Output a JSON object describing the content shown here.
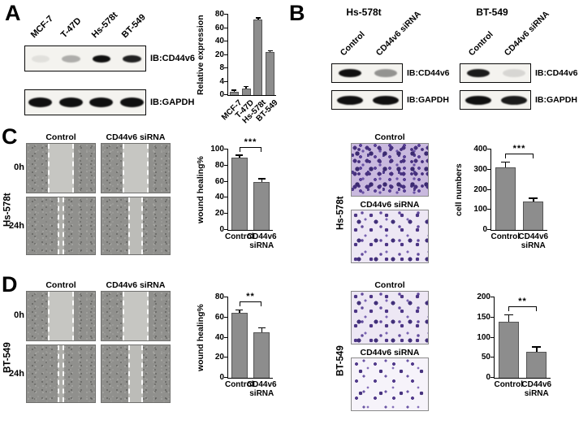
{
  "panel_a": {
    "letter": "A",
    "lanes": [
      "MCF-7",
      "T-47D",
      "Hs-578t",
      "BT-549"
    ],
    "blots": [
      {
        "label": "IB:CD44v6",
        "bands": [
          0.08,
          0.3,
          1,
          0.92
        ],
        "band_h": 9,
        "band_w": 0.6
      },
      {
        "label": "IB:GAPDH",
        "bands": [
          1,
          1,
          1,
          1
        ],
        "band_h": 12,
        "band_w": 0.78
      }
    ]
  },
  "panel_b": {
    "letter": "B",
    "groups": [
      {
        "title": "Hs-578t",
        "lanes": [
          "Control",
          "CD44v6 siRNA"
        ],
        "blots": [
          {
            "label": "IB:CD44v6",
            "bands": [
              1,
              0.42
            ],
            "band_h": 10,
            "band_w": 0.62
          },
          {
            "label": "IB:GAPDH",
            "bands": [
              1,
              1
            ],
            "band_h": 11,
            "band_w": 0.72
          }
        ]
      },
      {
        "title": "BT-549",
        "lanes": [
          "Control",
          "CD44v6 siRNA"
        ],
        "blots": [
          {
            "label": "IB:CD44v6",
            "bands": [
              0.95,
              0.12
            ],
            "band_h": 10,
            "band_w": 0.62
          },
          {
            "label": "IB:GAPDH",
            "bands": [
              1,
              0.95
            ],
            "band_h": 11,
            "band_w": 0.72
          }
        ]
      }
    ]
  },
  "panel_c": {
    "letter": "C",
    "cell_line": "Hs-578t",
    "wound_headers": [
      "Control",
      "CD44v6 siRNA"
    ],
    "time_labels": [
      "0h",
      "24h"
    ],
    "transwell": {
      "top": "Control",
      "mid": "CD44v6 siRNA",
      "side": "Hs-578t"
    }
  },
  "panel_d": {
    "letter": "D",
    "cell_line": "BT-549",
    "wound_headers": [
      "Control",
      "CD44v6 siRNA"
    ],
    "time_labels": [
      "0h",
      "24h"
    ],
    "transwell": {
      "top": "Control",
      "mid": "CD44v6 siRNA",
      "side": "BT-549"
    }
  },
  "chart_data": [
    {
      "type": "bar",
      "ylabel": "Relative expression",
      "categories": [
        "MCF-7",
        "T-47D",
        "Hs-578t",
        "BT-549"
      ],
      "values": [
        1,
        2,
        73,
        24
      ],
      "errors": [
        0.3,
        0.4,
        1.5,
        1
      ],
      "yticks": [
        0,
        4,
        8,
        20,
        40,
        60,
        80
      ],
      "axis_break": true,
      "significance": null,
      "bar_color": "#8d8d8d",
      "grid": false,
      "legend": false
    },
    {
      "type": "bar",
      "ylabel": "wound healing%",
      "categories": [
        "Control",
        "CD44v6\nsiRNA"
      ],
      "values": [
        90,
        60
      ],
      "errors": [
        2,
        3
      ],
      "yticks": [
        0,
        20,
        40,
        60,
        80,
        100
      ],
      "significance": "***",
      "bar_color": "#8d8d8d",
      "grid": false,
      "legend": false
    },
    {
      "type": "bar",
      "ylabel": "cell numbers",
      "categories": [
        "Control",
        "CD44v6\nsiRNA"
      ],
      "values": [
        310,
        140
      ],
      "errors": [
        25,
        15
      ],
      "yticks": [
        0,
        100,
        200,
        300,
        400
      ],
      "significance": "***",
      "bar_color": "#8d8d8d",
      "grid": false,
      "legend": false
    },
    {
      "type": "bar",
      "ylabel": "wound healing%",
      "categories": [
        "Control",
        "CD44v6\nsiRNA"
      ],
      "values": [
        65,
        45
      ],
      "errors": [
        2,
        4
      ],
      "yticks": [
        0,
        20,
        40,
        60,
        80
      ],
      "significance": "**",
      "bar_color": "#8d8d8d",
      "grid": false,
      "legend": false
    },
    {
      "type": "bar",
      "ylabel": "",
      "categories": [
        "Control",
        "CD44v6\nsiRNA"
      ],
      "values": [
        140,
        65
      ],
      "errors": [
        15,
        10
      ],
      "yticks": [
        0,
        50,
        100,
        150,
        200
      ],
      "significance": "**",
      "bar_color": "#8d8d8d",
      "grid": false,
      "legend": false
    }
  ]
}
